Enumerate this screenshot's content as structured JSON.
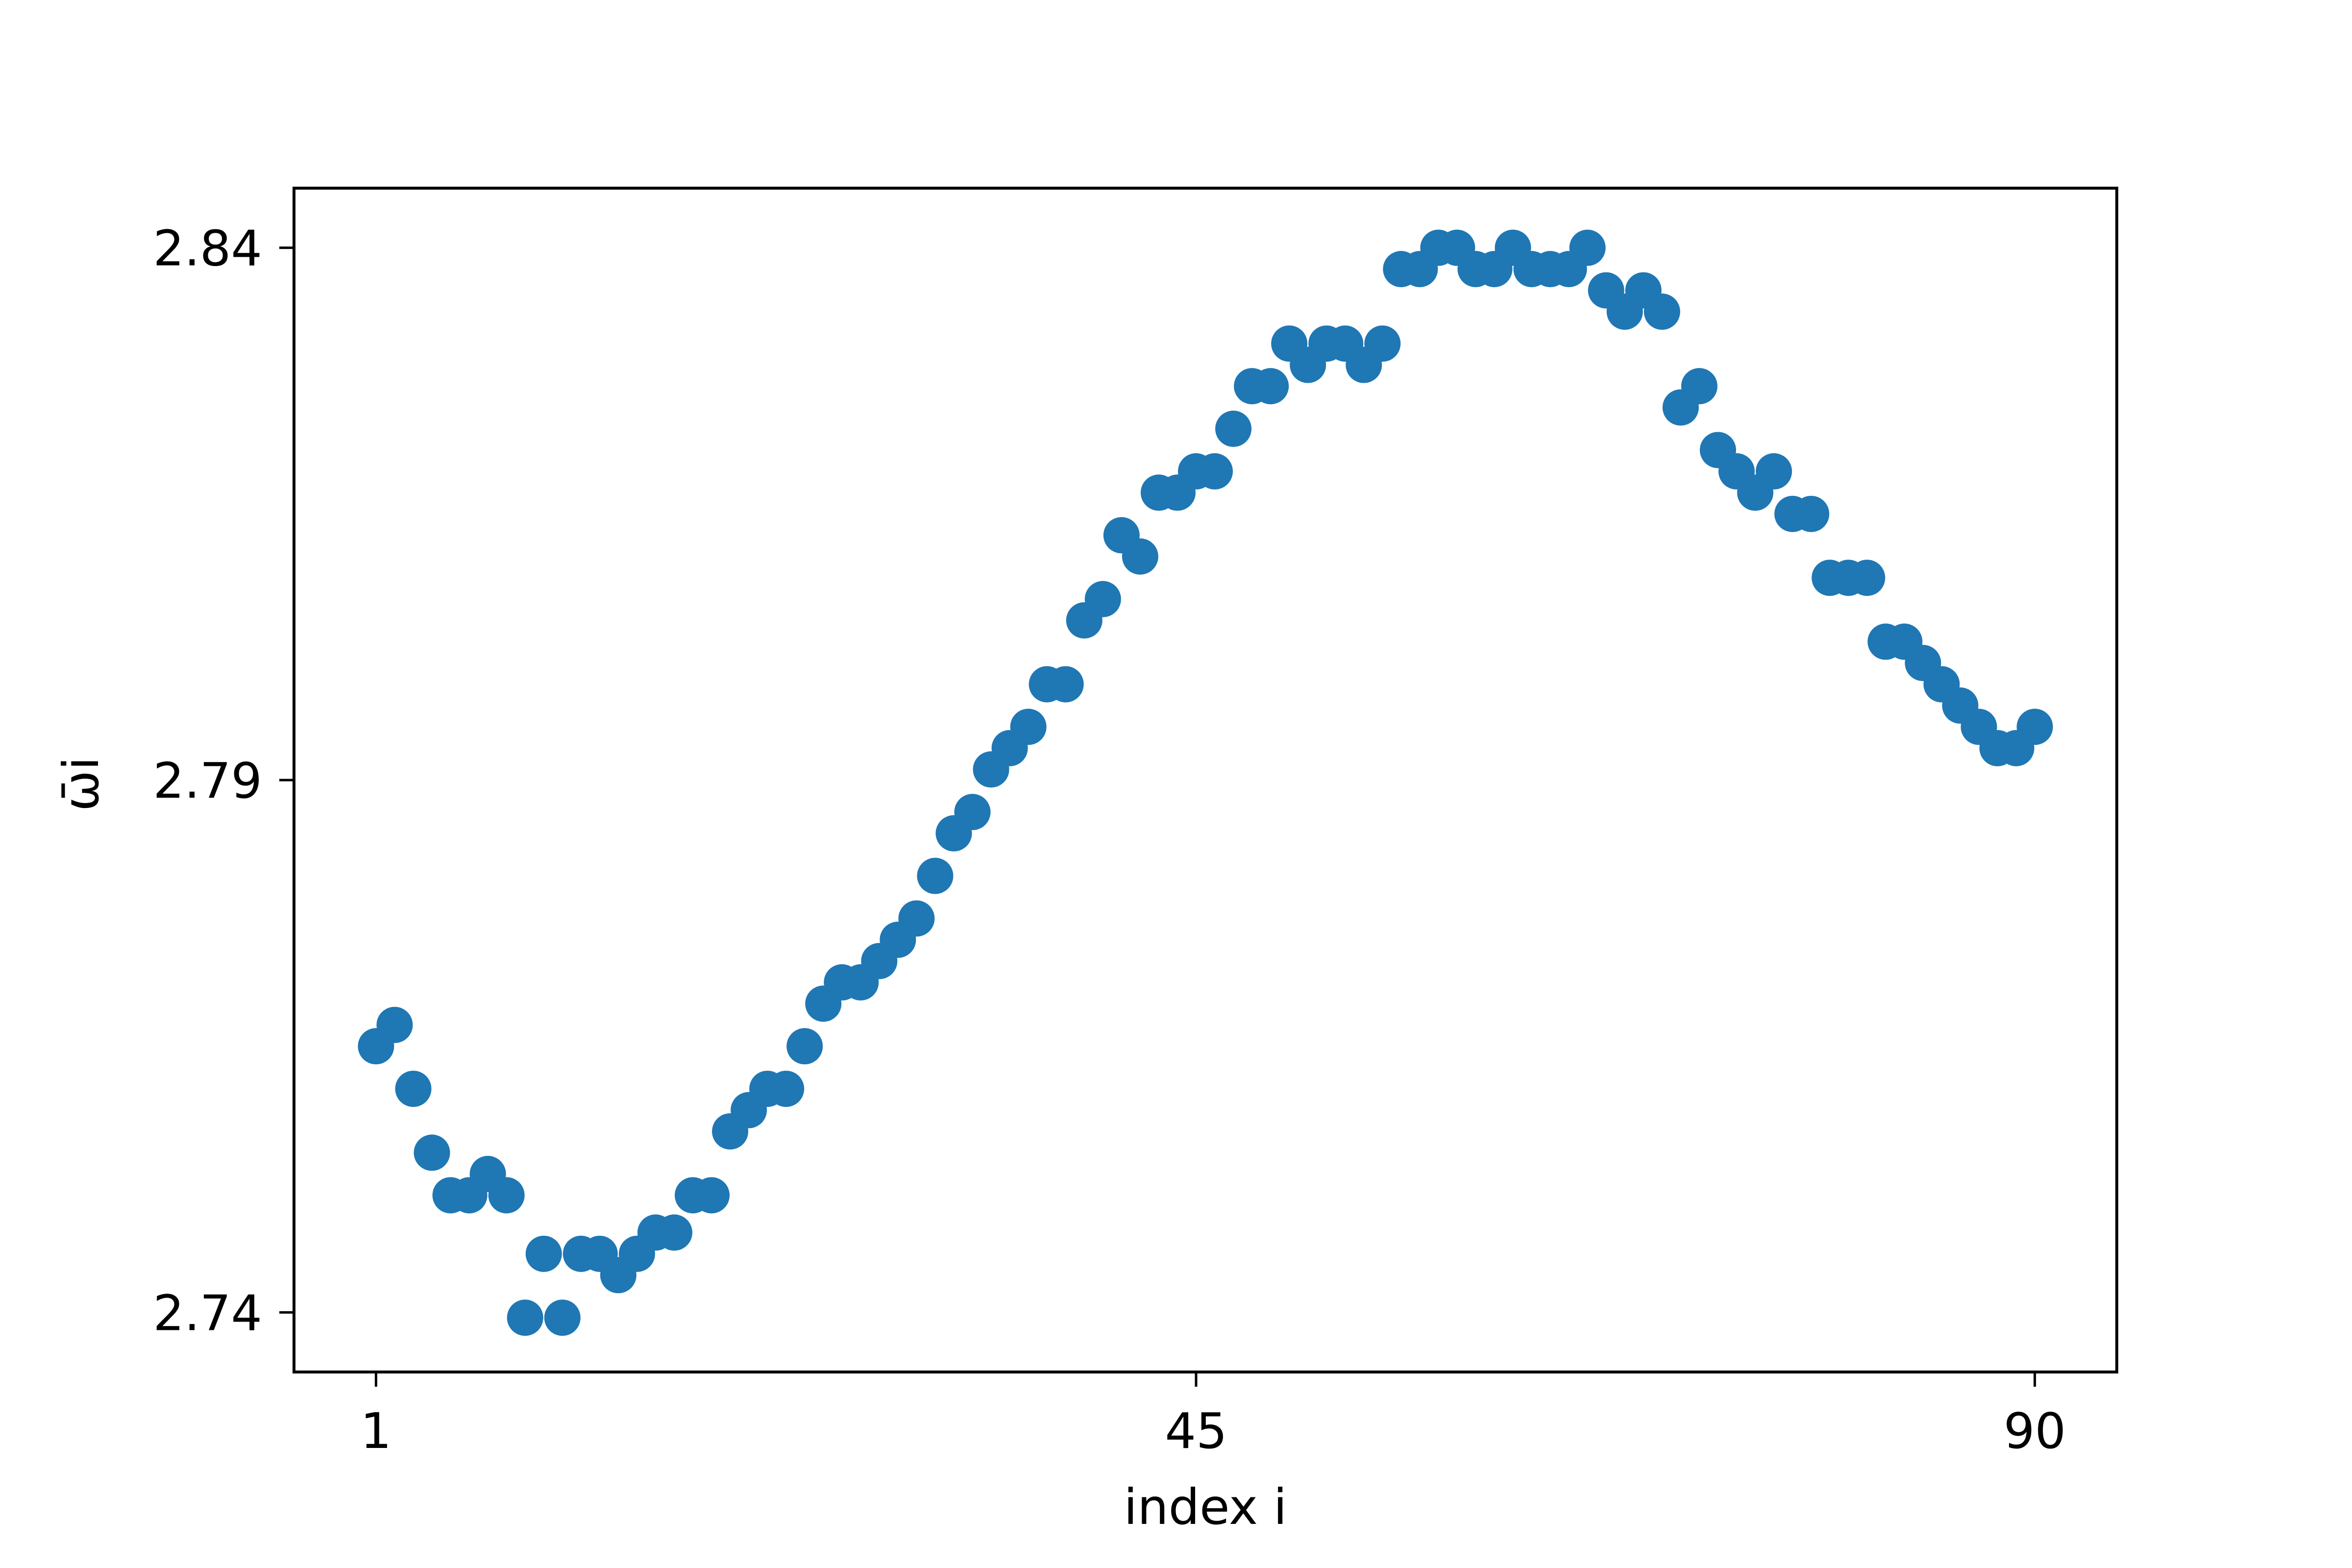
{
  "chart_data": {
    "type": "scatter",
    "title": "",
    "xlabel": "index i",
    "ylabel": "ω̄i",
    "xlim": [
      -3.4,
      94.4
    ],
    "ylim": [
      2.7344,
      2.8456
    ],
    "xticks": [
      1,
      45,
      90
    ],
    "xtick_labels": [
      "1",
      "45",
      "90"
    ],
    "yticks": [
      2.74,
      2.79,
      2.84
    ],
    "ytick_labels": [
      "2.74",
      "2.79",
      "2.84"
    ],
    "grid": false,
    "marker_color": "#1f77b4",
    "series": [
      {
        "name": "",
        "x": [
          1,
          2,
          3,
          4,
          5,
          6,
          7,
          8,
          9,
          10,
          11,
          12,
          13,
          14,
          15,
          16,
          17,
          18,
          19,
          20,
          21,
          22,
          23,
          24,
          25,
          26,
          27,
          28,
          29,
          30,
          31,
          32,
          33,
          34,
          35,
          36,
          37,
          38,
          39,
          40,
          41,
          42,
          43,
          44,
          45,
          46,
          47,
          48,
          49,
          50,
          51,
          52,
          53,
          54,
          55,
          56,
          57,
          58,
          59,
          60,
          61,
          62,
          63,
          64,
          65,
          66,
          67,
          68,
          69,
          70,
          71,
          72,
          73,
          74,
          75,
          76,
          77,
          78,
          79,
          80,
          81,
          82,
          83,
          84,
          85,
          86,
          87,
          88,
          89,
          90
        ],
        "y": [
          2.765,
          2.767,
          2.761,
          2.755,
          2.751,
          2.751,
          2.753,
          2.751,
          2.7395,
          2.7455,
          2.7395,
          2.7455,
          2.7455,
          2.7435,
          2.7455,
          2.7475,
          2.7475,
          2.751,
          2.751,
          2.757,
          2.759,
          2.761,
          2.761,
          2.765,
          2.769,
          2.771,
          2.771,
          2.773,
          2.775,
          2.777,
          2.781,
          2.785,
          2.787,
          2.791,
          2.793,
          2.795,
          2.799,
          2.799,
          2.805,
          2.807,
          2.813,
          2.811,
          2.817,
          2.817,
          2.819,
          2.819,
          2.823,
          2.827,
          2.827,
          2.831,
          2.829,
          2.831,
          2.831,
          2.829,
          2.831,
          2.838,
          2.838,
          2.84,
          2.84,
          2.838,
          2.838,
          2.84,
          2.838,
          2.838,
          2.838,
          2.84,
          2.836,
          2.834,
          2.836,
          2.834,
          2.825,
          2.827,
          2.821,
          2.819,
          2.817,
          2.819,
          2.815,
          2.815,
          2.809,
          2.809,
          2.809,
          2.803,
          2.803,
          2.801,
          2.799,
          2.797,
          2.795,
          2.793,
          2.793,
          2.795
        ]
      }
    ]
  }
}
